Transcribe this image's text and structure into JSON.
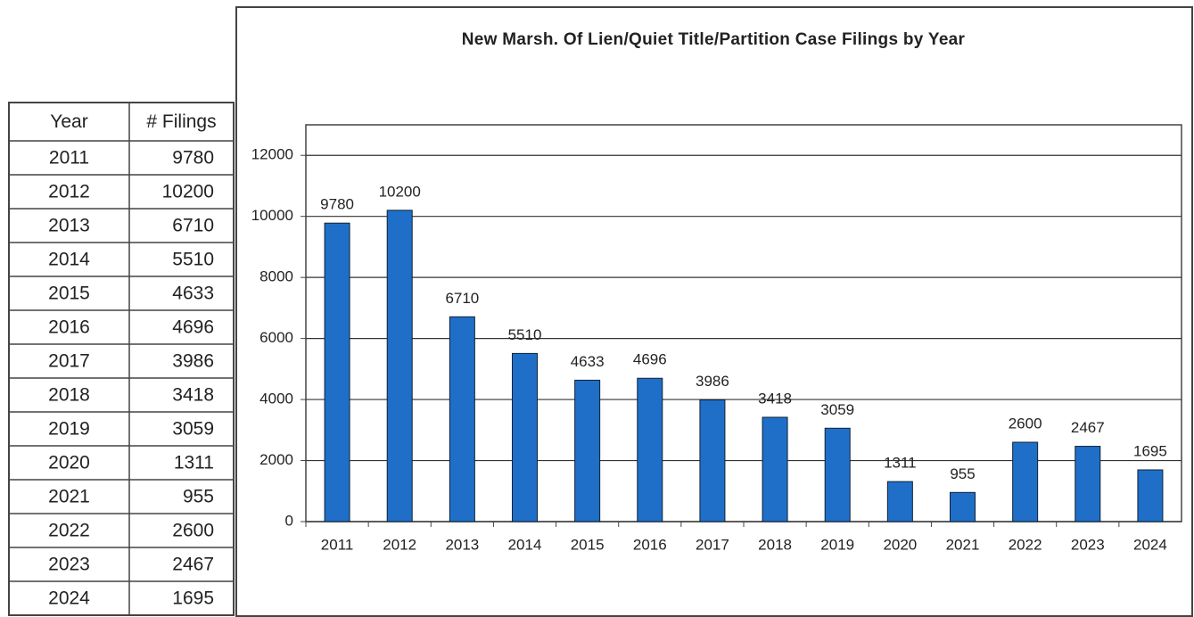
{
  "chart_data": {
    "type": "bar",
    "title": "New Marsh. Of Lien/Quiet Title/Partition Case Filings by Year",
    "categories": [
      "2011",
      "2012",
      "2013",
      "2014",
      "2015",
      "2016",
      "2017",
      "2018",
      "2019",
      "2020",
      "2021",
      "2022",
      "2023",
      "2024"
    ],
    "values": [
      9780,
      10200,
      6710,
      5510,
      4633,
      4696,
      3986,
      3418,
      3059,
      1311,
      955,
      2600,
      2467,
      1695
    ],
    "color": "#1f6fc8",
    "ylim": [
      0,
      13000
    ],
    "yticks": [
      0,
      2000,
      4000,
      6000,
      8000,
      10000,
      12000
    ],
    "grid": true
  },
  "table": {
    "columns": [
      "Year",
      "# Filings"
    ]
  }
}
